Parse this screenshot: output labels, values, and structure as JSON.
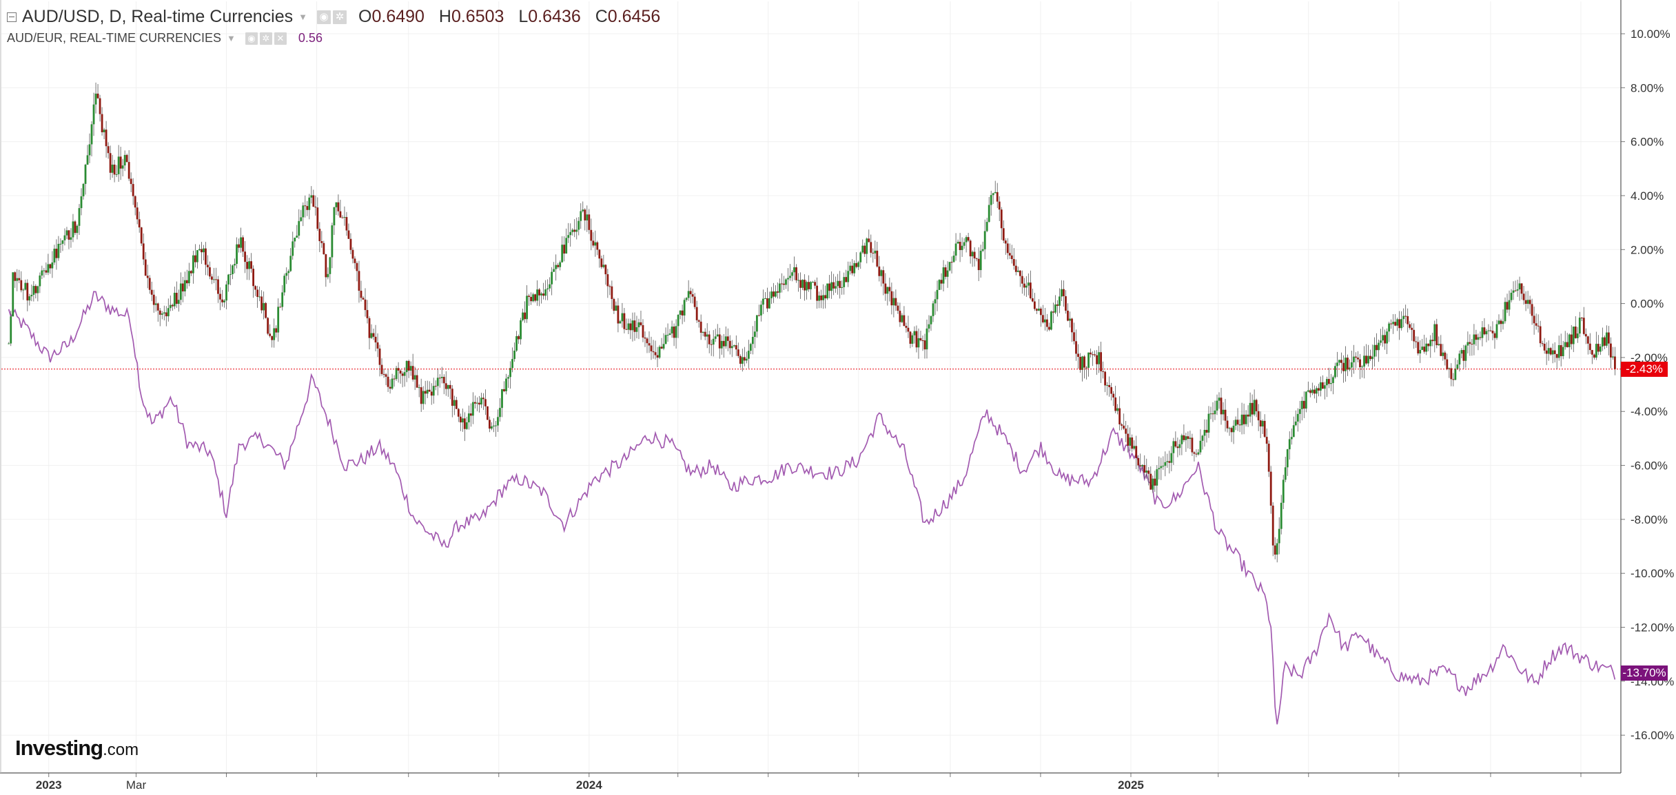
{
  "header": {
    "symbol": "AUD/USD, D, Real-time Currencies",
    "ohlc": [
      {
        "letter": "O",
        "value": "0.6490"
      },
      {
        "letter": "H",
        "value": "0.6503"
      },
      {
        "letter": "L",
        "value": "0.6436"
      },
      {
        "letter": "C",
        "value": "0.6456"
      }
    ],
    "compare_symbol": "AUD/EUR, REAL-TIME CURRENCIES",
    "compare_value": "0.56"
  },
  "icons": {
    "collapse": "minus-square-icon",
    "dropdown": "caret-down-icon",
    "settings": "gear-icon",
    "eye": "eye-icon",
    "remove": "close-icon"
  },
  "badges": {
    "main": "-2.43%",
    "compare": "-13.70%"
  },
  "watermark": {
    "brand": "Investing",
    "suffix": ".com"
  },
  "colors": {
    "candle_up": "#2a8b32",
    "candle_down": "#8f1a12",
    "wick": "#555555",
    "compare_line": "#a25ab0",
    "last_price_line": "#e8000b",
    "compare_badge": "#7b127b",
    "grid": "#f0f0f0"
  },
  "chart_data": [
    {
      "type": "candlestick",
      "name": "AUD/USD",
      "y_unit": "%",
      "ylim": [
        -17,
        11
      ],
      "yticks": [
        "10.00%",
        "8.00%",
        "6.00%",
        "4.00%",
        "2.00%",
        "0.00%",
        "-2.00%",
        "-4.00%",
        "-6.00%",
        "-8.00%",
        "-10.00%",
        "-12.00%",
        "-14.00%",
        "-16.00%"
      ],
      "x_range": [
        "2022-12-05",
        "2025-11-25"
      ],
      "x_tick_labels": [
        {
          "date": "2023-01-01",
          "label": "2023"
        },
        {
          "date": "2023-03-01",
          "label": "Mar"
        },
        {
          "date": "2024-01-01",
          "label": "2024"
        },
        {
          "date": "2025-01-01",
          "label": "2025"
        }
      ],
      "x_ticks_unlabeled": [
        "2023-05-01",
        "2023-07-01",
        "2023-09-01",
        "2023-11-01",
        "2024-03-01",
        "2024-05-01",
        "2024-07-01",
        "2024-09-01",
        "2024-11-01",
        "2025-03-01",
        "2025-05-01",
        "2025-07-01",
        "2025-09-01",
        "2025-11-01"
      ],
      "grid": true,
      "anchors_close_pct": [
        [
          "2022-12-05",
          -1.5
        ],
        [
          "2022-12-08",
          1.2
        ],
        [
          "2022-12-20",
          0.2
        ],
        [
          "2023-01-05",
          1.8
        ],
        [
          "2023-01-20",
          3.0
        ],
        [
          "2023-02-02",
          7.8
        ],
        [
          "2023-02-12",
          4.8
        ],
        [
          "2023-02-22",
          5.5
        ],
        [
          "2023-03-05",
          2.0
        ],
        [
          "2023-03-12",
          0.0
        ],
        [
          "2023-03-20",
          -0.5
        ],
        [
          "2023-04-05",
          1.0
        ],
        [
          "2023-04-13",
          2.3
        ],
        [
          "2023-04-28",
          0.0
        ],
        [
          "2023-05-10",
          2.3
        ],
        [
          "2023-05-25",
          0.0
        ],
        [
          "2023-06-01",
          -1.5
        ],
        [
          "2023-06-10",
          1.0
        ],
        [
          "2023-06-20",
          3.2
        ],
        [
          "2023-06-28",
          4.0
        ],
        [
          "2023-07-08",
          1.0
        ],
        [
          "2023-07-14",
          4.0
        ],
        [
          "2023-07-25",
          2.0
        ],
        [
          "2023-08-05",
          -1.0
        ],
        [
          "2023-08-18",
          -3.0
        ],
        [
          "2023-09-01",
          -2.2
        ],
        [
          "2023-09-10",
          -3.5
        ],
        [
          "2023-09-25",
          -2.8
        ],
        [
          "2023-10-08",
          -4.5
        ],
        [
          "2023-10-20",
          -3.5
        ],
        [
          "2023-10-28",
          -4.8
        ],
        [
          "2023-11-10",
          -2.0
        ],
        [
          "2023-11-20",
          0.0
        ],
        [
          "2023-12-01",
          0.5
        ],
        [
          "2023-12-10",
          1.5
        ],
        [
          "2023-12-28",
          3.4
        ],
        [
          "2024-01-08",
          1.8
        ],
        [
          "2024-01-20",
          -0.5
        ],
        [
          "2024-02-05",
          -1.0
        ],
        [
          "2024-02-15",
          -1.8
        ],
        [
          "2024-02-28",
          -1.0
        ],
        [
          "2024-03-08",
          0.5
        ],
        [
          "2024-03-20",
          -1.3
        ],
        [
          "2024-04-05",
          -1.5
        ],
        [
          "2024-04-15",
          -2.3
        ],
        [
          "2024-04-25",
          -0.3
        ],
        [
          "2024-05-15",
          1.2
        ],
        [
          "2024-06-05",
          0.3
        ],
        [
          "2024-06-20",
          0.8
        ],
        [
          "2024-07-08",
          2.3
        ],
        [
          "2024-07-20",
          0.5
        ],
        [
          "2024-08-05",
          -1.2
        ],
        [
          "2024-08-15",
          -1.5
        ],
        [
          "2024-08-25",
          0.8
        ],
        [
          "2024-09-10",
          2.5
        ],
        [
          "2024-09-20",
          1.2
        ],
        [
          "2024-09-30",
          4.3
        ],
        [
          "2024-10-10",
          1.8
        ],
        [
          "2024-10-25",
          0.5
        ],
        [
          "2024-11-05",
          -1.0
        ],
        [
          "2024-11-15",
          0.3
        ],
        [
          "2024-11-28",
          -2.2
        ],
        [
          "2024-12-10",
          -2.0
        ],
        [
          "2024-12-20",
          -3.7
        ],
        [
          "2025-01-05",
          -5.8
        ],
        [
          "2025-01-15",
          -6.8
        ],
        [
          "2025-01-25",
          -5.8
        ],
        [
          "2025-02-05",
          -4.8
        ],
        [
          "2025-02-15",
          -5.5
        ],
        [
          "2025-02-28",
          -3.5
        ],
        [
          "2025-03-10",
          -4.7
        ],
        [
          "2025-03-25",
          -3.8
        ],
        [
          "2025-04-03",
          -5.0
        ],
        [
          "2025-04-08",
          -9.8
        ],
        [
          "2025-04-15",
          -6.0
        ],
        [
          "2025-04-25",
          -3.8
        ],
        [
          "2025-05-10",
          -3.0
        ],
        [
          "2025-05-25",
          -2.2
        ],
        [
          "2025-06-10",
          -2.0
        ],
        [
          "2025-06-25",
          -1.0
        ],
        [
          "2025-07-05",
          -0.5
        ],
        [
          "2025-07-15",
          -1.8
        ],
        [
          "2025-07-25",
          -1.0
        ],
        [
          "2025-08-05",
          -2.7
        ],
        [
          "2025-08-20",
          -1.3
        ],
        [
          "2025-09-05",
          -1.0
        ],
        [
          "2025-09-18",
          0.8
        ],
        [
          "2025-10-01",
          -0.7
        ],
        [
          "2025-10-10",
          -1.9
        ],
        [
          "2025-10-20",
          -1.7
        ],
        [
          "2025-11-01",
          -0.7
        ],
        [
          "2025-11-10",
          -1.8
        ],
        [
          "2025-11-18",
          -1.3
        ],
        [
          "2025-11-25",
          -2.43
        ]
      ],
      "last_value": -2.43
    },
    {
      "type": "line",
      "name": "AUD/EUR",
      "y_unit": "%",
      "points": [
        [
          "2022-12-05",
          -0.3
        ],
        [
          "2022-12-15",
          -0.8
        ],
        [
          "2023-01-01",
          -2.0
        ],
        [
          "2023-01-15",
          -1.5
        ],
        [
          "2023-02-01",
          0.3
        ],
        [
          "2023-02-12",
          -0.2
        ],
        [
          "2023-02-25",
          -0.5
        ],
        [
          "2023-03-05",
          -3.5
        ],
        [
          "2023-03-12",
          -4.5
        ],
        [
          "2023-03-25",
          -3.5
        ],
        [
          "2023-04-05",
          -5.2
        ],
        [
          "2023-04-20",
          -5.5
        ],
        [
          "2023-05-01",
          -7.8
        ],
        [
          "2023-05-10",
          -5.2
        ],
        [
          "2023-05-25",
          -5.0
        ],
        [
          "2023-06-10",
          -6.0
        ],
        [
          "2023-06-28",
          -2.8
        ],
        [
          "2023-07-10",
          -4.5
        ],
        [
          "2023-07-20",
          -6.0
        ],
        [
          "2023-08-01",
          -5.8
        ],
        [
          "2023-08-12",
          -5.3
        ],
        [
          "2023-08-22",
          -6.0
        ],
        [
          "2023-09-05",
          -8.0
        ],
        [
          "2023-09-25",
          -9.0
        ],
        [
          "2023-10-05",
          -8.2
        ],
        [
          "2023-10-20",
          -8.0
        ],
        [
          "2023-11-05",
          -6.8
        ],
        [
          "2023-11-15",
          -6.5
        ],
        [
          "2023-12-01",
          -7.0
        ],
        [
          "2023-12-15",
          -8.2
        ],
        [
          "2024-01-05",
          -6.5
        ],
        [
          "2024-01-25",
          -5.8
        ],
        [
          "2024-02-10",
          -4.9
        ],
        [
          "2024-02-25",
          -5.2
        ],
        [
          "2024-03-10",
          -6.3
        ],
        [
          "2024-03-25",
          -6.0
        ],
        [
          "2024-04-05",
          -6.8
        ],
        [
          "2024-04-20",
          -6.5
        ],
        [
          "2024-05-05",
          -6.4
        ],
        [
          "2024-05-15",
          -6.0
        ],
        [
          "2024-06-01",
          -6.2
        ],
        [
          "2024-06-15",
          -6.3
        ],
        [
          "2024-07-01",
          -5.8
        ],
        [
          "2024-07-15",
          -4.2
        ],
        [
          "2024-08-01",
          -5.5
        ],
        [
          "2024-08-15",
          -8.2
        ],
        [
          "2024-09-01",
          -7.2
        ],
        [
          "2024-09-10",
          -6.5
        ],
        [
          "2024-09-25",
          -4.0
        ],
        [
          "2024-10-10",
          -5.2
        ],
        [
          "2024-10-20",
          -6.2
        ],
        [
          "2024-11-01",
          -5.3
        ],
        [
          "2024-11-15",
          -6.5
        ],
        [
          "2024-12-05",
          -6.6
        ],
        [
          "2024-12-20",
          -4.8
        ],
        [
          "2025-01-05",
          -5.8
        ],
        [
          "2025-01-20",
          -7.5
        ],
        [
          "2025-02-01",
          -7.2
        ],
        [
          "2025-02-15",
          -6.0
        ],
        [
          "2025-03-01",
          -8.5
        ],
        [
          "2025-03-15",
          -9.5
        ],
        [
          "2025-03-25",
          -10.3
        ],
        [
          "2025-04-01",
          -10.8
        ],
        [
          "2025-04-06",
          -12.0
        ],
        [
          "2025-04-09",
          -16.0
        ],
        [
          "2025-04-15",
          -13.5
        ],
        [
          "2025-04-25",
          -13.8
        ],
        [
          "2025-05-05",
          -13.0
        ],
        [
          "2025-05-15",
          -11.5
        ],
        [
          "2025-05-25",
          -12.8
        ],
        [
          "2025-06-05",
          -12.2
        ],
        [
          "2025-06-15",
          -13.0
        ],
        [
          "2025-07-01",
          -13.8
        ],
        [
          "2025-07-15",
          -14.0
        ],
        [
          "2025-08-01",
          -13.6
        ],
        [
          "2025-08-15",
          -14.3
        ],
        [
          "2025-09-01",
          -13.5
        ],
        [
          "2025-09-10",
          -12.7
        ],
        [
          "2025-09-20",
          -13.5
        ],
        [
          "2025-10-01",
          -14.1
        ],
        [
          "2025-10-10",
          -13.2
        ],
        [
          "2025-10-20",
          -12.7
        ],
        [
          "2025-11-01",
          -13.1
        ],
        [
          "2025-11-10",
          -13.4
        ],
        [
          "2025-11-25",
          -13.7
        ]
      ],
      "last_value": -13.7
    }
  ]
}
